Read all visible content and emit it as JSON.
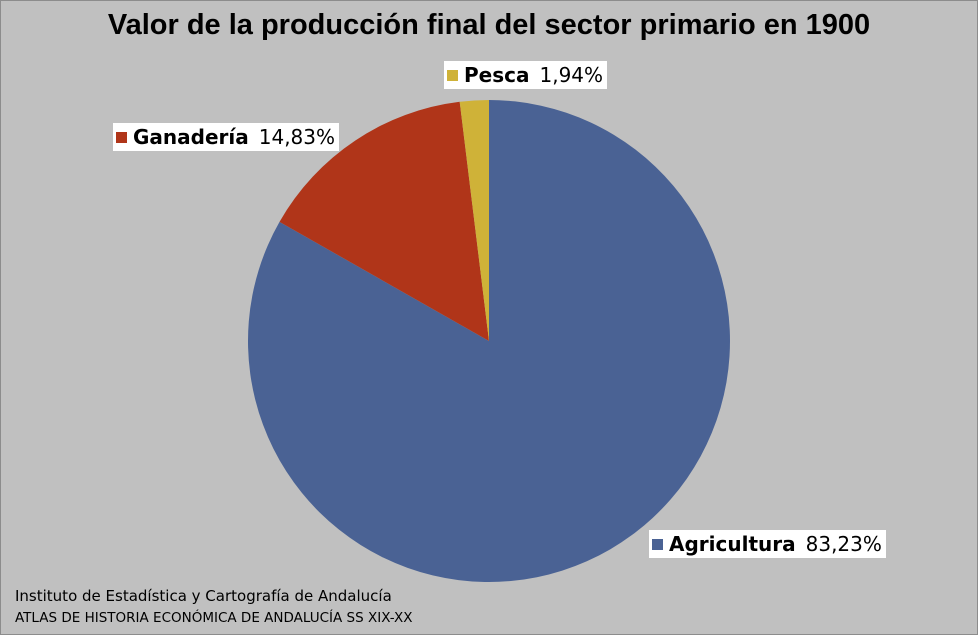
{
  "chart_data": {
    "type": "pie",
    "title": "Valor de la producción final del sector primario en 1900",
    "slices": [
      {
        "name": "Agricultura",
        "value": 83.23,
        "label": "83,23%",
        "color": "#4A6294"
      },
      {
        "name": "Ganadería",
        "value": 14.83,
        "label": "14,83%",
        "color": "#B03519"
      },
      {
        "name": "Pesca",
        "value": 1.94,
        "label": "1,94%",
        "color": "#CFB238"
      }
    ]
  },
  "source": {
    "line1": "Instituto de Estadística y Cartografía de Andalucía",
    "line2": "ATLAS DE HISTORIA ECONÓMICA DE ANDALUCÍA SS XIX-XX"
  }
}
